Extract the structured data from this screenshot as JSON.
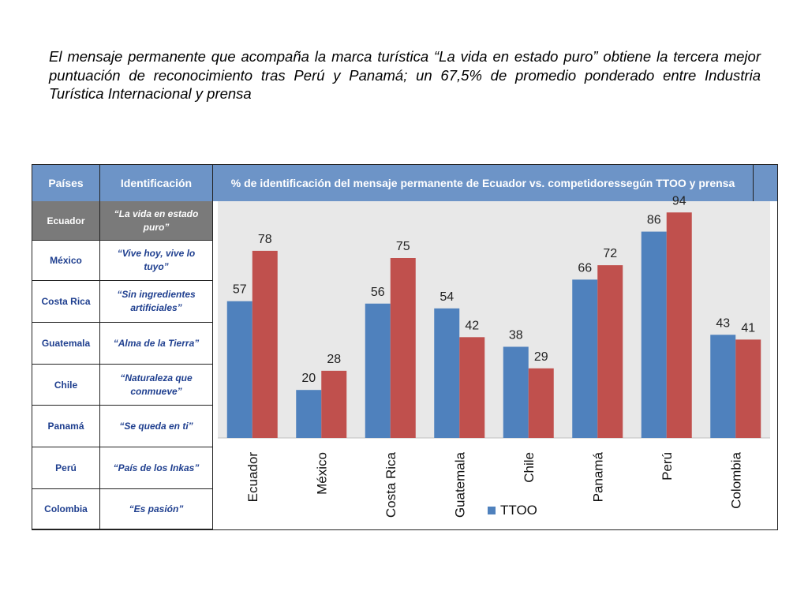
{
  "intro": {
    "text": "El mensaje permanente que acompaña  la marca turística “La vida en estado puro” obtiene la tercera mejor puntuación de reconocimiento tras Perú y Panamá; un 67,5% de promedio ponderado entre Industria Turística  Internacional y prensa"
  },
  "table": {
    "col_country": "Países",
    "col_slogan": "Identificación",
    "chart_header_line1": "% de identificación del mensaje permanente de Ecuador vs. competidores",
    "chart_header_line2": "según TTOO y prensa",
    "rows": [
      {
        "country": "Ecuador",
        "slogan": "“La vida en estado puro”"
      },
      {
        "country": "México",
        "slogan": "“Vive hoy, vive lo tuyo”"
      },
      {
        "country": "Costa Rica",
        "slogan": "“Sin ingredientes artificiales”"
      },
      {
        "country": "Guatemala",
        "slogan": "“Alma de la Tierra”"
      },
      {
        "country": "Chile",
        "slogan": "“Naturaleza que conmueve”"
      },
      {
        "country": "Panamá",
        "slogan": "“Se queda en ti”"
      },
      {
        "country": "Perú",
        "slogan": "“País de los Inkas”"
      },
      {
        "country": "Colombia",
        "slogan": "“Es pasión”"
      }
    ]
  },
  "chart_data": {
    "type": "bar",
    "title": "",
    "xlabel": "",
    "ylabel": "",
    "categories": [
      "Ecuador",
      "México",
      "Costa Rica",
      "Guatemala",
      "Chile",
      "Panamá",
      "Perú",
      "Colombia"
    ],
    "series": [
      {
        "name": "TTOO",
        "values": [
          57,
          20,
          56,
          54,
          38,
          66,
          86,
          43
        ],
        "color": "#4f81bd"
      },
      {
        "values": [
          78,
          28,
          75,
          42,
          29,
          72,
          94,
          41
        ],
        "color": "#c0504d"
      }
    ],
    "ylim": [
      0,
      100
    ],
    "grid": false,
    "legend": "bottom-center",
    "data_labels": true
  },
  "colors": {
    "header_blue": "#6d94c7",
    "row_dark": "#7a7a7a",
    "text_blue": "#1f3f8f",
    "plot_bg": "#e8e8e8"
  }
}
